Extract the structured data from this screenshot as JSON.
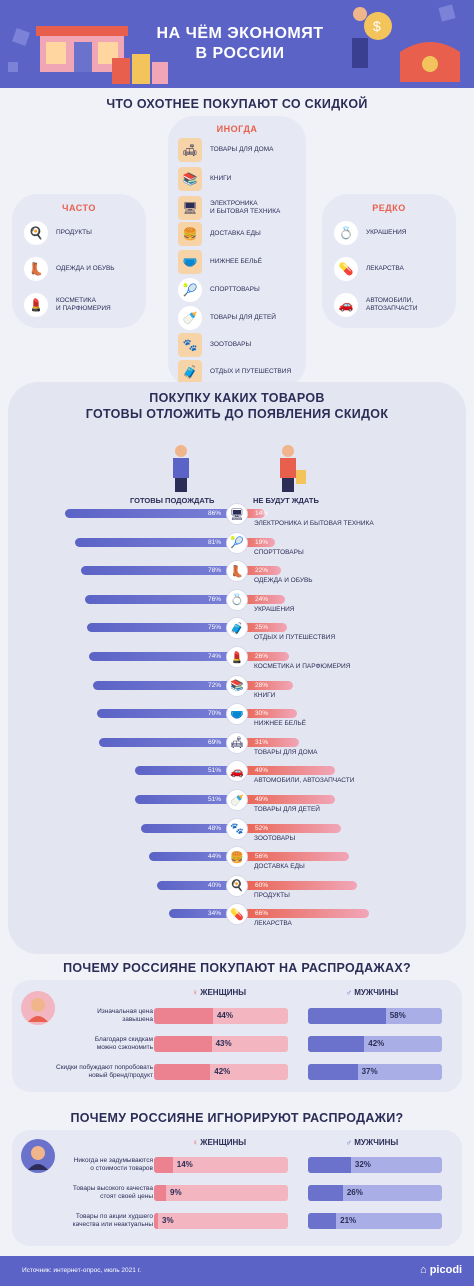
{
  "header": {
    "title_line1": "НА ЧЁМ ЭКОНОМЯТ",
    "title_line2": "В РОССИИ"
  },
  "section1": {
    "title": "ЧТО ОХОТНЕЕ ПОКУПАЮТ СО СКИДКОЙ",
    "often": {
      "heading": "ЧАСТО",
      "items": [
        "ПРОДУКТЫ",
        "ОДЕЖДА И ОБУВЬ",
        "КОСМЕТИКА\nИ ПАРФЮМЕРИЯ"
      ]
    },
    "sometimes": {
      "heading": "ИНОГДА",
      "items": [
        "ТОВАРЫ ДЛЯ ДОМА",
        "КНИГИ",
        "ЭЛЕКТРОНИКА\nИ БЫТОВАЯ ТЕХНИКА",
        "ДОСТАВКА ЕДЫ",
        "НИЖНЕЕ БЕЛЬЁ",
        "СПОРТТОВАРЫ",
        "ТОВАРЫ ДЛЯ ДЕТЕЙ",
        "ЗООТОВАРЫ",
        "ОТДЫХ И ПУТЕШЕСТВИЯ"
      ]
    },
    "rarely": {
      "heading": "РЕДКО",
      "items": [
        "УКРАШЕНИЯ",
        "ЛЕКАРСТВА",
        "АВТОМОБИЛИ,\nАВТОЗАПЧАСТИ"
      ]
    }
  },
  "section2": {
    "title_line1": "ПОКУПКУ КАКИХ ТОВАРОВ",
    "title_line2": "ГОТОВЫ ОТЛОЖИТЬ ДО ПОЯВЛЕНИЯ СКИДОК",
    "left_label": "ГОТОВЫ ПОДОЖДАТЬ",
    "right_label": "НЕ БУДУТ ЖДАТЬ"
  },
  "chart_data": [
    {
      "type": "bar",
      "orientation": "diverging",
      "series": [
        {
          "name": "ГОТОВЫ ПОДОЖДАТЬ",
          "values": [
            86,
            81,
            78,
            76,
            75,
            74,
            72,
            70,
            69,
            51,
            51,
            48,
            44,
            40,
            34
          ]
        },
        {
          "name": "НЕ БУДУТ ЖДАТЬ",
          "values": [
            14,
            19,
            22,
            24,
            25,
            26,
            28,
            30,
            31,
            49,
            49,
            52,
            56,
            60,
            66
          ]
        }
      ],
      "categories": [
        "ЭЛЕКТРОНИКА И БЫТОВАЯ ТЕХНИКА",
        "СПОРТТОВАРЫ",
        "ОДЕЖДА И ОБУВЬ",
        "УКРАШЕНИЯ",
        "ОТДЫХ И ПУТЕШЕСТВИЯ",
        "КОСМЕТИКА И ПАРФЮМЕРИЯ",
        "КНИГИ",
        "НИЖНЕЕ БЕЛЬЁ",
        "ТОВАРЫ ДЛЯ ДОМА",
        "АВТОМОБИЛИ, АВТОЗАПЧАСТИ",
        "ТОВАРЫ ДЛЯ ДЕТЕЙ",
        "ЗООТОВАРЫ",
        "ДОСТАВКА ЕДЫ",
        "ПРОДУКТЫ",
        "ЛЕКАРСТВА"
      ],
      "icons": [
        "monitor-icon",
        "racket-icon",
        "shoe-icon",
        "ring-icon",
        "suitcase-icon",
        "lipstick-icon",
        "book-icon",
        "underwear-icon",
        "sofa-icon",
        "car-icon",
        "pacifier-icon",
        "pet-food-icon",
        "food-box-icon",
        "egg-icon",
        "pill-icon"
      ],
      "unit": "%"
    },
    {
      "type": "bar",
      "title": "ПОЧЕМУ РОССИЯНЕ ПОКУПАЮТ НА РАСПРОДАЖАХ?",
      "categories": [
        "Изначальная цена\nзавышена",
        "Благодаря скидкам\nможно сэкономить",
        "Скидки побуждают попробовать\nновый бренд/продукт"
      ],
      "series": [
        {
          "name": "ЖЕНЩИНЫ",
          "values": [
            44,
            43,
            42
          ]
        },
        {
          "name": "МУЖЧИНЫ",
          "values": [
            58,
            42,
            37
          ]
        }
      ],
      "unit": "%"
    },
    {
      "type": "bar",
      "title": "ПОЧЕМУ РОССИЯНЕ ИГНОРИРУЮТ РАСПРОДАЖИ?",
      "categories": [
        "Никогда не задумываются\nо стоимости товаров",
        "Товары высокого качества\nстоят своей цены",
        "Товары по акции худшего\nкачества или неактуальны"
      ],
      "series": [
        {
          "name": "ЖЕНЩИНЫ",
          "values": [
            14,
            9,
            3
          ]
        },
        {
          "name": "МУЖЧИНЫ",
          "values": [
            32,
            26,
            21
          ]
        }
      ],
      "unit": "%"
    }
  ],
  "colors": {
    "primary": "#5b63c6",
    "accent": "#e8604d",
    "women_fill": "#ec8290",
    "women_bg": "#f3b5bf",
    "men_fill": "#6a72cc",
    "men_bg": "#a9aee6"
  },
  "footer": {
    "source": "Источник: интернет-опрос, июль 2021 г.",
    "logo": "picodi"
  }
}
